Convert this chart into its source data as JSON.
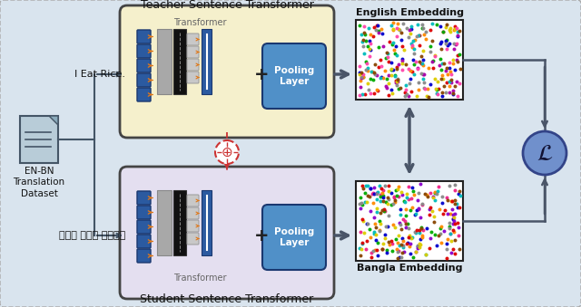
{
  "bg_color": "#d9e4ee",
  "fig_width": 6.4,
  "fig_height": 3.39,
  "title_teacher": "Teacher Sentence Transformer",
  "title_student": "Student Sentence Transformer",
  "label_transformer": "Transformer",
  "label_pooling": "Pooling\nLayer",
  "label_english_emb": "English Embedding",
  "label_bangla_emb": "Bangla Embedding",
  "label_dataset": "EN-BN\nTranslation\nDataset",
  "label_english_input": "I Eat Rice.",
  "label_bangla_input": "আমি ভাত খাই।",
  "teacher_box_color": "#f5f0cc",
  "student_box_color": "#e4dff0",
  "pooling_color": "#5090c8",
  "blue_block_color": "#2b5aa0",
  "loss_circle_color": "#7090cc",
  "arrow_color": "#4a5568",
  "weight_share_color": "#cc3333",
  "double_arrow_color": "#4a5568",
  "doc_color": "#b8ccd8",
  "doc_fold_color": "#8aaabb",
  "doc_line_color": "#445566",
  "gray_bar_color": "#a8a8a8",
  "black_bar_color": "#111111",
  "small_sq_color": "#c8c8c8",
  "orange_arrow_color": "#e07818"
}
